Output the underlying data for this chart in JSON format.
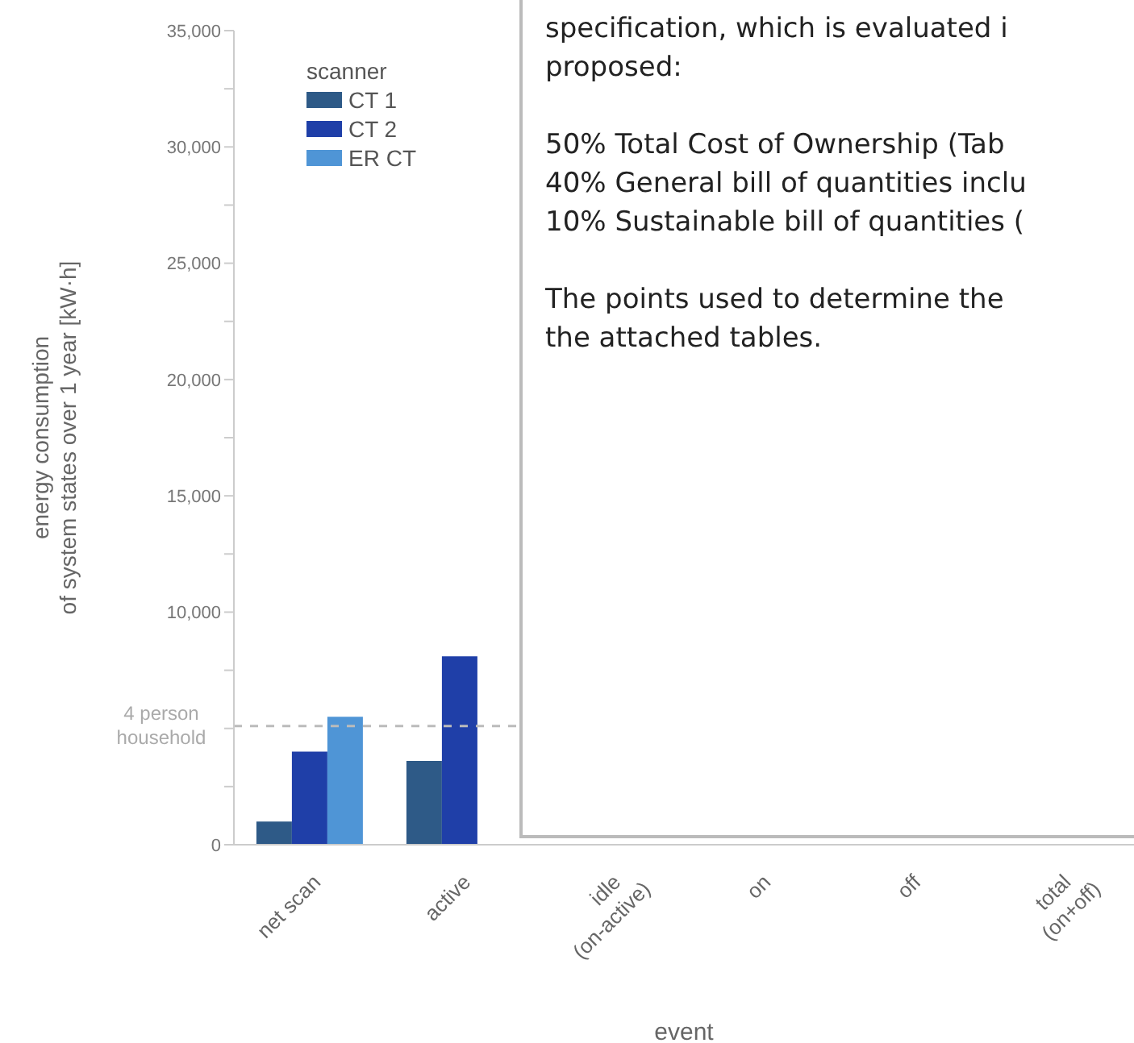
{
  "chart_data": {
    "type": "bar",
    "xlabel": "event",
    "ylabel": "energy consumption\nof system states over 1 year [kW·h]",
    "legend_title": "scanner",
    "legend": "top left",
    "categories": [
      "net scan",
      "active",
      "idle (on-active)",
      "on",
      "off",
      "total (on+off)"
    ],
    "series": [
      {
        "name": "CT 1",
        "color": "#2e5a87",
        "values": [
          1000,
          3600,
          null,
          null,
          null,
          null
        ]
      },
      {
        "name": "CT 2",
        "color": "#1f3fa8",
        "values": [
          4000,
          8100,
          null,
          null,
          null,
          null
        ]
      },
      {
        "name": "ER CT",
        "color": "#4f95d6",
        "values": [
          5500,
          null,
          null,
          null,
          null,
          null
        ]
      }
    ],
    "ylim": [
      0,
      35000
    ],
    "yticks": [
      0,
      {
        "value": 2500,
        "label": null
      },
      {
        "value": 5000,
        "label": null
      },
      {
        "value": 7500,
        "label": null
      },
      {
        "value": 10000,
        "label": "10,000"
      },
      {
        "value": 12500,
        "label": null
      },
      {
        "value": 15000,
        "label": "15,000"
      },
      {
        "value": 17500,
        "label": null
      },
      {
        "value": 20000,
        "label": "20,000"
      },
      {
        "value": 22500,
        "label": null
      },
      {
        "value": 25000,
        "label": "25,000"
      },
      {
        "value": 27500,
        "label": null
      },
      {
        "value": 30000,
        "label": "30,000"
      },
      {
        "value": 32500,
        "label": null
      },
      {
        "value": 35000,
        "label": "35,000"
      }
    ],
    "ref_lines": [
      {
        "axis": "y",
        "value": 5100,
        "label": "4 person household",
        "color": "#bbbbbb",
        "line_style": "dashed"
      }
    ],
    "annotations": [
      "specification, which is evaluated i\nproposed:",
      "50% Total Cost of Ownership (Tab\n40% General bill of quantities inclu\n10% Sustainable bill of quantities (",
      "The points used to determine the\nthe attached tables."
    ]
  }
}
